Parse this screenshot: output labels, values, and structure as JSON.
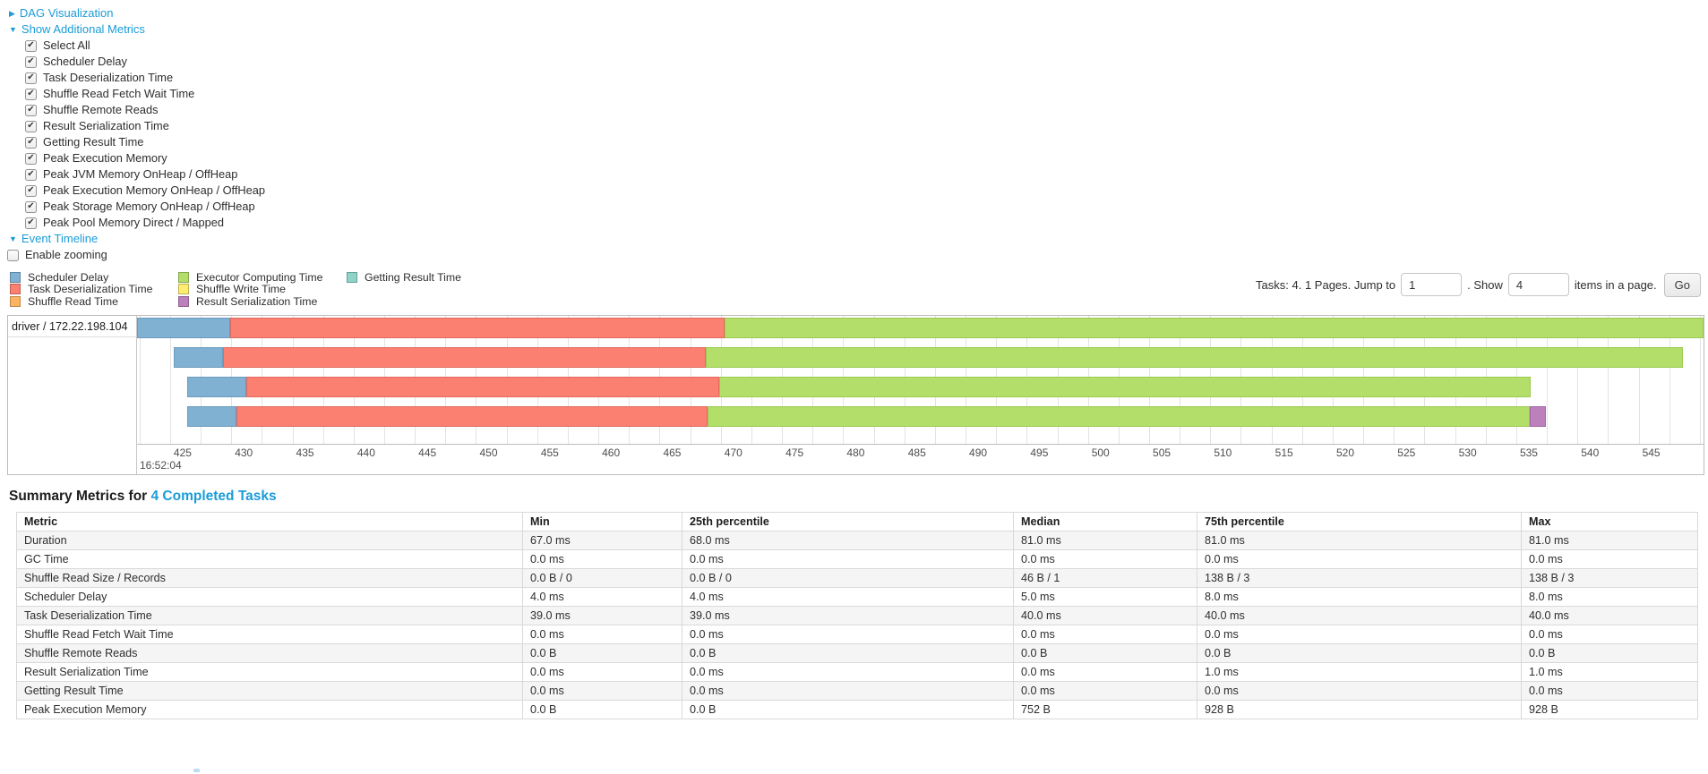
{
  "colors": {
    "link_blue": "#1a9cd8"
  },
  "sections": {
    "dag": {
      "arrow": "▶",
      "label": "DAG Visualization"
    },
    "additional_metrics": {
      "arrow": "▼",
      "label": "Show Additional Metrics"
    },
    "event_timeline": {
      "arrow": "▼",
      "label": "Event Timeline"
    },
    "enable_zooming_label": "Enable zooming",
    "enable_zooming_checked": false
  },
  "metric_checkboxes": [
    "Select All",
    "Scheduler Delay",
    "Task Deserialization Time",
    "Shuffle Read Fetch Wait Time",
    "Shuffle Remote Reads",
    "Result Serialization Time",
    "Getting Result Time",
    "Peak Execution Memory",
    "Peak JVM Memory OnHeap / OffHeap",
    "Peak Execution Memory OnHeap / OffHeap",
    "Peak Storage Memory OnHeap / OffHeap",
    "Peak Pool Memory Direct / Mapped"
  ],
  "legend": {
    "columns": [
      [
        "Scheduler Delay",
        "Task Deserialization Time",
        "Shuffle Read Time"
      ],
      [
        "Executor Computing Time",
        "Shuffle Write Time",
        "Result Serialization Time"
      ],
      [
        "Getting Result Time"
      ]
    ]
  },
  "pagination": {
    "prefix": "Tasks: 4. 1 Pages. Jump to",
    "jump_value": "1",
    "mid": ". Show",
    "show_value": "4",
    "suffix": "items in a page.",
    "go_label": "Go"
  },
  "chart_data": {
    "type": "timeline",
    "title": "Event Timeline",
    "group_label": "driver / 172.22.198.104",
    "time_base_label": "16:52:04",
    "axis": {
      "min": 422.3,
      "max": 550.3,
      "tick_start": 425,
      "tick_step": 5,
      "tick_end": 550,
      "grid_start": 422.5,
      "minor_step": 2.5,
      "unit": "ms"
    },
    "series_colors": {
      "Scheduler Delay": {
        "fill": "#80B1D3",
        "border": "#6b9cbf"
      },
      "Task Deserialization Time": {
        "fill": "#FB8072",
        "border": "#e26a5e"
      },
      "Shuffle Read Time": {
        "fill": "#FDB462",
        "border": "#e59a48"
      },
      "Executor Computing Time": {
        "fill": "#B3DE69",
        "border": "#9aca52"
      },
      "Shuffle Write Time": {
        "fill": "#FFED6F",
        "border": "#e8d455"
      },
      "Result Serialization Time": {
        "fill": "#BC80BD",
        "border": "#a369a4"
      },
      "Getting Result Time": {
        "fill": "#8DD3C7",
        "border": "#76bcae"
      }
    },
    "tasks": [
      {
        "segments": [
          {
            "name": "Scheduler Delay",
            "start": 422.3,
            "end": 429.9
          },
          {
            "name": "Task Deserialization Time",
            "start": 429.9,
            "end": 470.3
          },
          {
            "name": "Executor Computing Time",
            "start": 470.3,
            "end": 550.3
          }
        ]
      },
      {
        "segments": [
          {
            "name": "Scheduler Delay",
            "start": 425.3,
            "end": 429.3
          },
          {
            "name": "Task Deserialization Time",
            "start": 429.3,
            "end": 468.8
          },
          {
            "name": "Executor Computing Time",
            "start": 468.8,
            "end": 548.6
          }
        ]
      },
      {
        "segments": [
          {
            "name": "Scheduler Delay",
            "start": 426.4,
            "end": 431.2
          },
          {
            "name": "Task Deserialization Time",
            "start": 431.2,
            "end": 469.9
          },
          {
            "name": "Executor Computing Time",
            "start": 469.9,
            "end": 536.2
          }
        ]
      },
      {
        "segments": [
          {
            "name": "Scheduler Delay",
            "start": 426.4,
            "end": 430.4
          },
          {
            "name": "Task Deserialization Time",
            "start": 430.4,
            "end": 468.9
          },
          {
            "name": "Executor Computing Time",
            "start": 468.9,
            "end": 536.1
          },
          {
            "name": "Result Serialization Time",
            "start": 536.1,
            "end": 537.4
          }
        ]
      }
    ]
  },
  "summary": {
    "title_prefix": "Summary Metrics for ",
    "title_link": "4 Completed Tasks",
    "table": {
      "headers": [
        "Metric",
        "Min",
        "25th percentile",
        "Median",
        "75th percentile",
        "Max"
      ],
      "rows": [
        {
          "metric": "Duration",
          "values": [
            "67.0 ms",
            "68.0 ms",
            "81.0 ms",
            "81.0 ms",
            "81.0 ms"
          ]
        },
        {
          "metric": "GC Time",
          "values": [
            "0.0 ms",
            "0.0 ms",
            "0.0 ms",
            "0.0 ms",
            "0.0 ms"
          ]
        },
        {
          "metric": "Shuffle Read Size / Records",
          "values": [
            "0.0 B / 0",
            "0.0 B / 0",
            "46 B / 1",
            "138 B / 3",
            "138 B / 3"
          ]
        },
        {
          "metric": "Scheduler Delay",
          "values": [
            "4.0 ms",
            "4.0 ms",
            "5.0 ms",
            "8.0 ms",
            "8.0 ms"
          ]
        },
        {
          "metric": "Task Deserialization Time",
          "values": [
            "39.0 ms",
            "39.0 ms",
            "40.0 ms",
            "40.0 ms",
            "40.0 ms"
          ]
        },
        {
          "metric": "Shuffle Read Fetch Wait Time",
          "values": [
            "0.0 ms",
            "0.0 ms",
            "0.0 ms",
            "0.0 ms",
            "0.0 ms"
          ]
        },
        {
          "metric": "Shuffle Remote Reads",
          "values": [
            "0.0 B",
            "0.0 B",
            "0.0 B",
            "0.0 B",
            "0.0 B"
          ]
        },
        {
          "metric": "Result Serialization Time",
          "values": [
            "0.0 ms",
            "0.0 ms",
            "0.0 ms",
            "1.0 ms",
            "1.0 ms"
          ]
        },
        {
          "metric": "Getting Result Time",
          "values": [
            "0.0 ms",
            "0.0 ms",
            "0.0 ms",
            "0.0 ms",
            "0.0 ms"
          ]
        },
        {
          "metric": "Peak Execution Memory",
          "values": [
            "0.0 B",
            "0.0 B",
            "752 B",
            "928 B",
            "928 B"
          ]
        }
      ]
    }
  }
}
